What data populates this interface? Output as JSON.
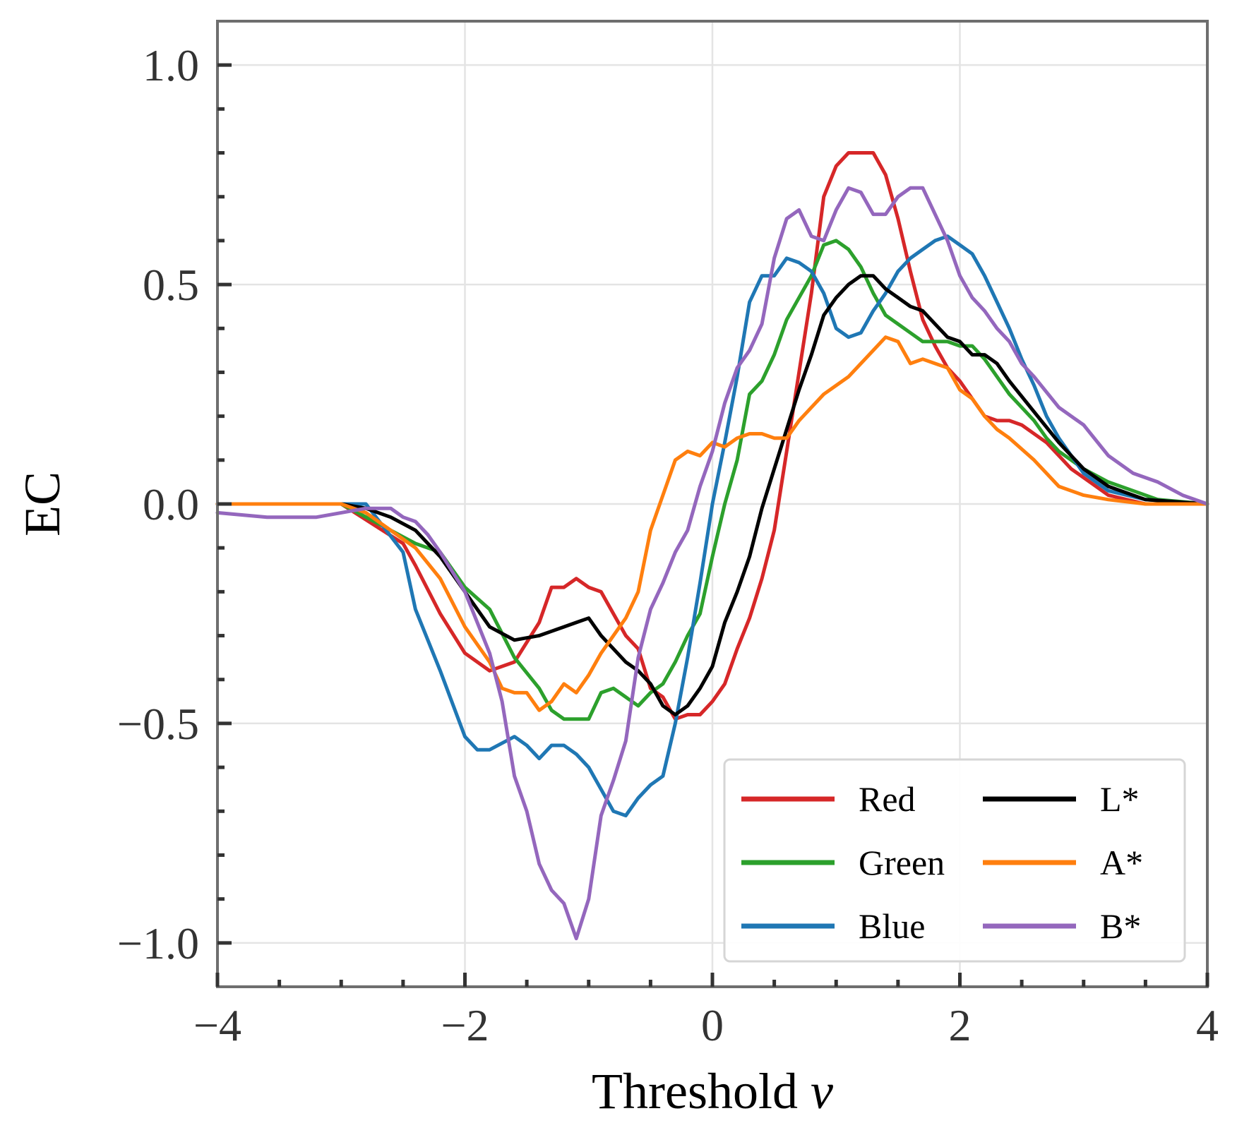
{
  "chart_data": {
    "type": "line",
    "xlabel": "Threshold ",
    "xlabel_var": "ν",
    "ylabel": "EC",
    "xlim": [
      -4,
      4
    ],
    "ylim": [
      -1.1,
      1.1
    ],
    "x_ticks": [
      -4,
      -2,
      0,
      2,
      4
    ],
    "x_tick_labels": [
      "−4",
      "−2",
      "0",
      "2",
      "4"
    ],
    "y_ticks": [
      1.0,
      0.5,
      0.0,
      -0.5,
      -1.0
    ],
    "y_tick_labels": [
      "1.0",
      "0.5",
      "0.0",
      "−0.5",
      "−1.0"
    ],
    "grid": true,
    "legend_position": "lower right",
    "legend_columns": 2,
    "series": [
      {
        "name": "Red",
        "color": "#d62728",
        "x": [
          -4,
          -3,
          -2.5,
          -2.4,
          -2.2,
          -2.0,
          -1.8,
          -1.6,
          -1.4,
          -1.3,
          -1.2,
          -1.1,
          -1.0,
          -0.9,
          -0.8,
          -0.7,
          -0.6,
          -0.5,
          -0.4,
          -0.3,
          -0.2,
          -0.1,
          0.0,
          0.1,
          0.2,
          0.3,
          0.4,
          0.5,
          0.6,
          0.7,
          0.8,
          0.9,
          1.0,
          1.1,
          1.2,
          1.3,
          1.4,
          1.5,
          1.6,
          1.7,
          1.8,
          1.9,
          2.0,
          2.1,
          2.2,
          2.3,
          2.4,
          2.5,
          2.6,
          2.7,
          2.8,
          2.9,
          3.0,
          3.1,
          3.2,
          3.5,
          4.0
        ],
        "y": [
          0,
          0,
          -0.09,
          -0.14,
          -0.25,
          -0.34,
          -0.38,
          -0.36,
          -0.27,
          -0.19,
          -0.19,
          -0.17,
          -0.19,
          -0.2,
          -0.25,
          -0.3,
          -0.33,
          -0.42,
          -0.44,
          -0.49,
          -0.48,
          -0.48,
          -0.45,
          -0.41,
          -0.33,
          -0.26,
          -0.17,
          -0.06,
          0.12,
          0.3,
          0.48,
          0.7,
          0.77,
          0.8,
          0.8,
          0.8,
          0.75,
          0.65,
          0.53,
          0.42,
          0.36,
          0.31,
          0.28,
          0.24,
          0.2,
          0.19,
          0.19,
          0.18,
          0.16,
          0.14,
          0.11,
          0.08,
          0.06,
          0.04,
          0.02,
          0.0,
          0
        ]
      },
      {
        "name": "Green",
        "color": "#2ca02c",
        "x": [
          -4,
          -3,
          -2.6,
          -2.4,
          -2.2,
          -2.0,
          -1.8,
          -1.6,
          -1.4,
          -1.3,
          -1.2,
          -1.1,
          -1.0,
          -0.9,
          -0.8,
          -0.7,
          -0.6,
          -0.5,
          -0.4,
          -0.3,
          -0.2,
          -0.1,
          0.0,
          0.1,
          0.2,
          0.3,
          0.4,
          0.5,
          0.6,
          0.7,
          0.8,
          0.9,
          1.0,
          1.1,
          1.2,
          1.3,
          1.4,
          1.5,
          1.6,
          1.7,
          1.8,
          1.9,
          2.0,
          2.1,
          2.2,
          2.3,
          2.4,
          2.5,
          2.6,
          2.7,
          2.8,
          3.0,
          3.2,
          3.4,
          3.6,
          4.0
        ],
        "y": [
          0,
          0,
          -0.06,
          -0.09,
          -0.11,
          -0.19,
          -0.24,
          -0.35,
          -0.42,
          -0.47,
          -0.49,
          -0.49,
          -0.49,
          -0.43,
          -0.42,
          -0.44,
          -0.46,
          -0.43,
          -0.41,
          -0.36,
          -0.3,
          -0.25,
          -0.12,
          0.0,
          0.1,
          0.25,
          0.28,
          0.34,
          0.42,
          0.47,
          0.52,
          0.59,
          0.6,
          0.58,
          0.54,
          0.48,
          0.43,
          0.41,
          0.39,
          0.37,
          0.37,
          0.37,
          0.36,
          0.36,
          0.33,
          0.29,
          0.25,
          0.22,
          0.19,
          0.15,
          0.12,
          0.08,
          0.05,
          0.03,
          0.01,
          0
        ]
      },
      {
        "name": "Blue",
        "color": "#1f77b4",
        "x": [
          -4,
          -2.8,
          -2.5,
          -2.4,
          -2.2,
          -2.0,
          -1.9,
          -1.8,
          -1.6,
          -1.5,
          -1.4,
          -1.3,
          -1.2,
          -1.1,
          -1.0,
          -0.9,
          -0.8,
          -0.7,
          -0.6,
          -0.5,
          -0.4,
          -0.3,
          -0.2,
          -0.1,
          0.0,
          0.1,
          0.2,
          0.3,
          0.4,
          0.5,
          0.6,
          0.7,
          0.8,
          0.9,
          1.0,
          1.1,
          1.2,
          1.3,
          1.4,
          1.5,
          1.6,
          1.7,
          1.8,
          1.9,
          2.0,
          2.1,
          2.2,
          2.3,
          2.4,
          2.5,
          2.6,
          2.7,
          2.8,
          3.0,
          3.2,
          3.5,
          4.0
        ],
        "y": [
          0,
          0,
          -0.11,
          -0.24,
          -0.38,
          -0.53,
          -0.56,
          -0.56,
          -0.53,
          -0.55,
          -0.58,
          -0.55,
          -0.55,
          -0.57,
          -0.6,
          -0.65,
          -0.7,
          -0.71,
          -0.67,
          -0.64,
          -0.62,
          -0.5,
          -0.35,
          -0.18,
          0.0,
          0.14,
          0.29,
          0.46,
          0.52,
          0.52,
          0.56,
          0.55,
          0.53,
          0.48,
          0.4,
          0.38,
          0.39,
          0.44,
          0.48,
          0.53,
          0.56,
          0.58,
          0.6,
          0.61,
          0.59,
          0.57,
          0.52,
          0.46,
          0.4,
          0.33,
          0.27,
          0.2,
          0.15,
          0.07,
          0.03,
          0.01,
          0
        ]
      },
      {
        "name": "L*",
        "color": "#000000",
        "x": [
          -4,
          -3.0,
          -2.8,
          -2.6,
          -2.4,
          -2.2,
          -2.0,
          -1.8,
          -1.6,
          -1.4,
          -1.3,
          -1.2,
          -1.1,
          -1.0,
          -0.9,
          -0.8,
          -0.7,
          -0.6,
          -0.5,
          -0.4,
          -0.3,
          -0.2,
          -0.1,
          0.0,
          0.1,
          0.2,
          0.3,
          0.4,
          0.5,
          0.6,
          0.7,
          0.8,
          0.9,
          1.0,
          1.1,
          1.2,
          1.3,
          1.4,
          1.5,
          1.6,
          1.7,
          1.8,
          1.9,
          2.0,
          2.1,
          2.2,
          2.3,
          2.4,
          2.6,
          2.8,
          3.0,
          3.2,
          3.5,
          4.0
        ],
        "y": [
          0,
          0,
          -0.01,
          -0.03,
          -0.06,
          -0.12,
          -0.2,
          -0.28,
          -0.31,
          -0.3,
          -0.29,
          -0.28,
          -0.27,
          -0.26,
          -0.3,
          -0.33,
          -0.36,
          -0.38,
          -0.41,
          -0.46,
          -0.48,
          -0.46,
          -0.42,
          -0.37,
          -0.27,
          -0.2,
          -0.12,
          -0.01,
          0.08,
          0.17,
          0.26,
          0.34,
          0.43,
          0.47,
          0.5,
          0.52,
          0.52,
          0.49,
          0.47,
          0.45,
          0.44,
          0.41,
          0.38,
          0.37,
          0.34,
          0.34,
          0.32,
          0.28,
          0.21,
          0.14,
          0.08,
          0.04,
          0.01,
          0
        ]
      },
      {
        "name": "A*",
        "color": "#ff7f0e",
        "x": [
          -4,
          -3.0,
          -2.8,
          -2.6,
          -2.4,
          -2.2,
          -2.0,
          -1.8,
          -1.7,
          -1.6,
          -1.5,
          -1.4,
          -1.3,
          -1.2,
          -1.1,
          -1.0,
          -0.9,
          -0.8,
          -0.7,
          -0.6,
          -0.5,
          -0.4,
          -0.3,
          -0.2,
          -0.1,
          0.0,
          0.1,
          0.2,
          0.3,
          0.4,
          0.5,
          0.6,
          0.7,
          0.8,
          0.9,
          1.0,
          1.1,
          1.2,
          1.3,
          1.4,
          1.5,
          1.6,
          1.7,
          1.8,
          1.9,
          2.0,
          2.1,
          2.2,
          2.3,
          2.4,
          2.6,
          2.8,
          3.0,
          3.2,
          3.5,
          4.0
        ],
        "y": [
          0,
          0,
          -0.02,
          -0.06,
          -0.1,
          -0.17,
          -0.28,
          -0.36,
          -0.42,
          -0.43,
          -0.43,
          -0.47,
          -0.45,
          -0.41,
          -0.43,
          -0.39,
          -0.34,
          -0.3,
          -0.26,
          -0.2,
          -0.06,
          0.02,
          0.1,
          0.12,
          0.11,
          0.14,
          0.13,
          0.15,
          0.16,
          0.16,
          0.15,
          0.15,
          0.19,
          0.22,
          0.25,
          0.27,
          0.29,
          0.32,
          0.35,
          0.38,
          0.37,
          0.32,
          0.33,
          0.32,
          0.31,
          0.26,
          0.24,
          0.2,
          0.17,
          0.15,
          0.1,
          0.04,
          0.02,
          0.01,
          0,
          0
        ]
      },
      {
        "name": "B*",
        "color": "#9467bd",
        "x": [
          -4,
          -3.6,
          -3.2,
          -3.0,
          -2.8,
          -2.6,
          -2.5,
          -2.4,
          -2.3,
          -2.2,
          -2.0,
          -1.9,
          -1.8,
          -1.7,
          -1.6,
          -1.5,
          -1.4,
          -1.3,
          -1.2,
          -1.1,
          -1.0,
          -0.9,
          -0.8,
          -0.7,
          -0.6,
          -0.5,
          -0.4,
          -0.3,
          -0.2,
          -0.1,
          0.0,
          0.1,
          0.2,
          0.3,
          0.4,
          0.5,
          0.6,
          0.7,
          0.8,
          0.9,
          1.0,
          1.1,
          1.2,
          1.3,
          1.4,
          1.5,
          1.6,
          1.7,
          1.8,
          1.9,
          2.0,
          2.1,
          2.2,
          2.3,
          2.4,
          2.5,
          2.6,
          2.8,
          3.0,
          3.2,
          3.4,
          3.6,
          3.8,
          4.0
        ],
        "y": [
          -0.02,
          -0.03,
          -0.03,
          -0.02,
          -0.01,
          -0.01,
          -0.03,
          -0.04,
          -0.07,
          -0.11,
          -0.2,
          -0.27,
          -0.34,
          -0.45,
          -0.62,
          -0.7,
          -0.82,
          -0.88,
          -0.91,
          -0.99,
          -0.9,
          -0.71,
          -0.63,
          -0.54,
          -0.35,
          -0.24,
          -0.18,
          -0.11,
          -0.06,
          0.04,
          0.12,
          0.23,
          0.31,
          0.35,
          0.41,
          0.56,
          0.65,
          0.67,
          0.61,
          0.6,
          0.67,
          0.72,
          0.71,
          0.66,
          0.66,
          0.7,
          0.72,
          0.72,
          0.66,
          0.6,
          0.52,
          0.47,
          0.44,
          0.4,
          0.37,
          0.32,
          0.29,
          0.22,
          0.18,
          0.11,
          0.07,
          0.05,
          0.02,
          0.0
        ]
      }
    ]
  }
}
